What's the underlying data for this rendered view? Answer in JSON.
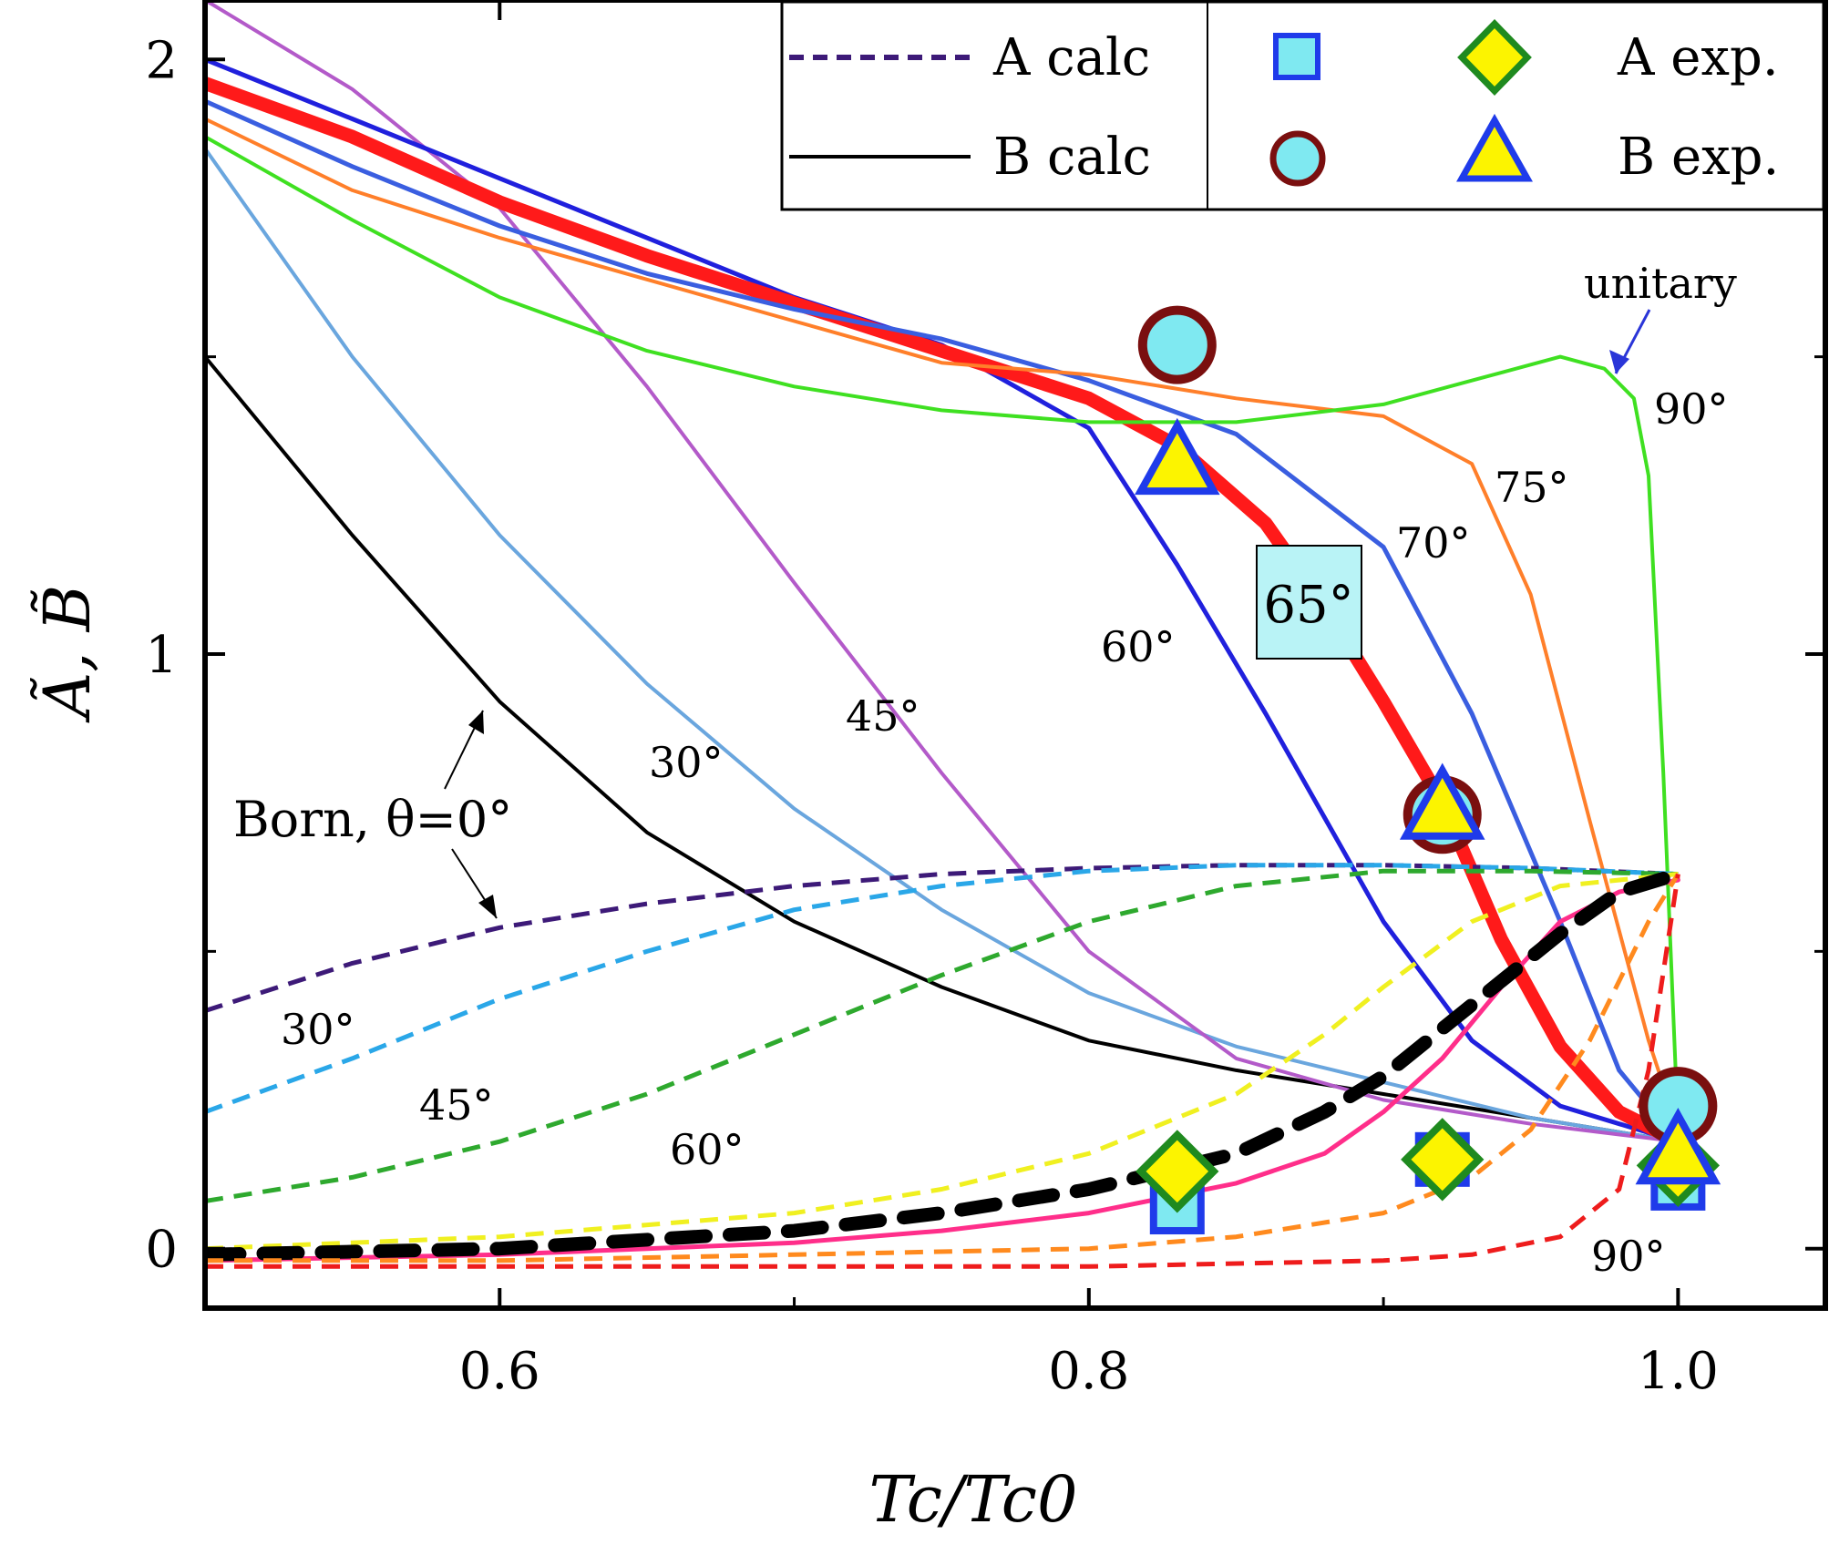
{
  "chart_data": {
    "type": "line",
    "xlabel": "Tc/Tc0",
    "ylabel": "Ã, B̃",
    "xlim": [
      0.5,
      1.05
    ],
    "ylim": [
      -0.1,
      2.1
    ],
    "x_ticks": [
      {
        "value": 0.6,
        "label": "0.6"
      },
      {
        "value": 0.8,
        "label": "0.8"
      },
      {
        "value": 1.0,
        "label": "1.0"
      }
    ],
    "x_minor_ticks": [
      0.5,
      0.7,
      0.9
    ],
    "y_ticks": [
      {
        "value": 0,
        "label": "0"
      },
      {
        "value": 1,
        "label": "1"
      },
      {
        "value": 2,
        "label": "2"
      }
    ],
    "y_minor_ticks": [
      0.5,
      1.5
    ],
    "legend": {
      "placement": "top-right",
      "a_calc": "A calc",
      "b_calc": "B calc",
      "a_exp": "A exp.",
      "b_exp": "B exp."
    },
    "series": [
      {
        "name": "B calc 0° (Born)",
        "kind": "B",
        "color": "#000000",
        "dash": "solid",
        "width": 4,
        "x": [
          0.5,
          0.55,
          0.6,
          0.65,
          0.7,
          0.75,
          0.8,
          0.85,
          0.9,
          0.95,
          1.0
        ],
        "y": [
          1.5,
          1.2,
          0.92,
          0.7,
          0.55,
          0.44,
          0.35,
          0.3,
          0.26,
          0.22,
          0.18
        ]
      },
      {
        "name": "B calc 30°",
        "kind": "B",
        "color": "#6aa6de",
        "dash": "solid",
        "width": 4,
        "x": [
          0.5,
          0.55,
          0.6,
          0.65,
          0.7,
          0.75,
          0.8,
          0.85,
          0.9,
          0.95,
          1.0
        ],
        "y": [
          1.85,
          1.5,
          1.2,
          0.95,
          0.74,
          0.57,
          0.43,
          0.34,
          0.28,
          0.22,
          0.18
        ]
      },
      {
        "name": "B calc 45°",
        "kind": "B",
        "color": "#b35ac9",
        "dash": "solid",
        "width": 4,
        "x": [
          0.5,
          0.55,
          0.6,
          0.65,
          0.7,
          0.75,
          0.8,
          0.85,
          0.9,
          0.95,
          1.0
        ],
        "y": [
          2.1,
          1.95,
          1.75,
          1.45,
          1.12,
          0.8,
          0.5,
          0.32,
          0.25,
          0.21,
          0.18
        ]
      },
      {
        "name": "B calc 60°",
        "kind": "B",
        "color": "#2020dd",
        "dash": "solid",
        "width": 5,
        "x": [
          0.5,
          0.55,
          0.6,
          0.65,
          0.7,
          0.75,
          0.8,
          0.83,
          0.86,
          0.9,
          0.93,
          0.96,
          1.0
        ],
        "y": [
          2.0,
          1.9,
          1.8,
          1.7,
          1.6,
          1.52,
          1.38,
          1.15,
          0.9,
          0.55,
          0.35,
          0.24,
          0.18
        ]
      },
      {
        "name": "B calc 65°",
        "kind": "B",
        "color": "#ff1a1a",
        "dash": "solid",
        "width": 15,
        "x": [
          0.5,
          0.55,
          0.6,
          0.65,
          0.7,
          0.75,
          0.8,
          0.83,
          0.86,
          0.88,
          0.9,
          0.92,
          0.94,
          0.96,
          0.98,
          1.0
        ],
        "y": [
          1.96,
          1.87,
          1.76,
          1.67,
          1.59,
          1.51,
          1.43,
          1.35,
          1.22,
          1.08,
          0.92,
          0.75,
          0.52,
          0.34,
          0.23,
          0.18
        ]
      },
      {
        "name": "B calc 70°",
        "kind": "B",
        "color": "#3a5ee0",
        "dash": "solid",
        "width": 5,
        "x": [
          0.5,
          0.55,
          0.6,
          0.65,
          0.7,
          0.75,
          0.8,
          0.85,
          0.9,
          0.93,
          0.96,
          0.98,
          1.0
        ],
        "y": [
          1.93,
          1.82,
          1.72,
          1.64,
          1.58,
          1.53,
          1.46,
          1.37,
          1.18,
          0.9,
          0.55,
          0.3,
          0.18
        ]
      },
      {
        "name": "B calc 75°",
        "kind": "B",
        "color": "#ff7f2a",
        "dash": "solid",
        "width": 4,
        "x": [
          0.5,
          0.55,
          0.6,
          0.65,
          0.7,
          0.75,
          0.8,
          0.85,
          0.9,
          0.93,
          0.95,
          0.97,
          0.99,
          1.0
        ],
        "y": [
          1.9,
          1.78,
          1.7,
          1.63,
          1.56,
          1.49,
          1.47,
          1.43,
          1.4,
          1.32,
          1.1,
          0.72,
          0.35,
          0.2
        ]
      },
      {
        "name": "B calc 90° (unitary)",
        "kind": "B",
        "color": "#3fe021",
        "dash": "solid",
        "width": 4,
        "x": [
          0.5,
          0.55,
          0.6,
          0.65,
          0.7,
          0.75,
          0.8,
          0.85,
          0.9,
          0.93,
          0.96,
          0.975,
          0.985,
          0.99,
          0.995,
          1.0
        ],
        "y": [
          1.87,
          1.73,
          1.6,
          1.51,
          1.45,
          1.41,
          1.39,
          1.39,
          1.42,
          1.46,
          1.5,
          1.48,
          1.43,
          1.3,
          0.8,
          0.2
        ]
      },
      {
        "name": "B calc 90° (pink)",
        "kind": "B",
        "color": "#ff2e8a",
        "dash": "solid",
        "width": 5,
        "x": [
          0.5,
          0.6,
          0.7,
          0.75,
          0.8,
          0.85,
          0.88,
          0.9,
          0.92,
          0.94,
          0.96,
          0.98,
          1.0
        ],
        "y": [
          -0.02,
          -0.01,
          0.01,
          0.03,
          0.06,
          0.11,
          0.16,
          0.23,
          0.32,
          0.44,
          0.55,
          0.6,
          0.62
        ]
      },
      {
        "name": "A calc 0° (Born)",
        "kind": "A",
        "color": "#3d1a78",
        "dash": "dashed",
        "width": 5,
        "x": [
          0.5,
          0.55,
          0.6,
          0.65,
          0.7,
          0.75,
          0.8,
          0.85,
          0.9,
          0.95,
          1.0
        ],
        "y": [
          0.4,
          0.48,
          0.54,
          0.58,
          0.61,
          0.63,
          0.64,
          0.645,
          0.645,
          0.64,
          0.63
        ]
      },
      {
        "name": "A calc 30°",
        "kind": "A",
        "color": "#2aa7e8",
        "dash": "dashed",
        "width": 5,
        "x": [
          0.5,
          0.55,
          0.6,
          0.65,
          0.7,
          0.75,
          0.8,
          0.85,
          0.9,
          0.95,
          1.0
        ],
        "y": [
          0.23,
          0.32,
          0.42,
          0.5,
          0.57,
          0.61,
          0.635,
          0.645,
          0.645,
          0.64,
          0.63
        ]
      },
      {
        "name": "A calc 45°",
        "kind": "A",
        "color": "#2ea92e",
        "dash": "dashed",
        "width": 5,
        "x": [
          0.5,
          0.55,
          0.6,
          0.65,
          0.7,
          0.75,
          0.8,
          0.85,
          0.9,
          0.95,
          1.0
        ],
        "y": [
          0.08,
          0.12,
          0.18,
          0.26,
          0.36,
          0.46,
          0.55,
          0.61,
          0.635,
          0.635,
          0.63
        ]
      },
      {
        "name": "A calc 60°",
        "kind": "A",
        "color": "#f0f020",
        "dash": "dashed",
        "width": 5,
        "x": [
          0.5,
          0.6,
          0.7,
          0.75,
          0.8,
          0.85,
          0.88,
          0.9,
          0.93,
          0.96,
          1.0
        ],
        "y": [
          0.0,
          0.02,
          0.06,
          0.1,
          0.16,
          0.26,
          0.36,
          0.44,
          0.55,
          0.61,
          0.63
        ]
      },
      {
        "name": "A calc 65°",
        "kind": "A",
        "color": "#000000",
        "dash": "dashed",
        "width": 15,
        "x": [
          0.5,
          0.6,
          0.7,
          0.75,
          0.8,
          0.85,
          0.88,
          0.9,
          0.92,
          0.94,
          0.96,
          0.98,
          1.0
        ],
        "y": [
          -0.01,
          0.0,
          0.03,
          0.06,
          0.1,
          0.16,
          0.23,
          0.29,
          0.37,
          0.45,
          0.53,
          0.6,
          0.63
        ]
      },
      {
        "name": "A calc 75°",
        "kind": "A",
        "color": "#ff8a1e",
        "dash": "dashed",
        "width": 5,
        "x": [
          0.5,
          0.6,
          0.7,
          0.8,
          0.85,
          0.9,
          0.93,
          0.95,
          0.97,
          0.99,
          1.0
        ],
        "y": [
          -0.02,
          -0.02,
          -0.01,
          0.0,
          0.02,
          0.06,
          0.12,
          0.2,
          0.35,
          0.55,
          0.63
        ]
      },
      {
        "name": "A calc 90°",
        "kind": "A",
        "color": "#ee1c1c",
        "dash": "dashed",
        "width": 5,
        "x": [
          0.5,
          0.7,
          0.8,
          0.9,
          0.93,
          0.96,
          0.98,
          0.99,
          1.0
        ],
        "y": [
          -0.03,
          -0.03,
          -0.03,
          -0.02,
          -0.01,
          0.02,
          0.1,
          0.3,
          0.63
        ]
      }
    ],
    "markers": [
      {
        "name": "A exp. square",
        "shape": "square",
        "x": 0.83,
        "y": 0.07,
        "fill": "#7fe9f1",
        "stroke": "#1f3bea"
      },
      {
        "name": "A exp. square",
        "shape": "square",
        "x": 0.92,
        "y": 0.15,
        "fill": "#7fe9f1",
        "stroke": "#1f3bea"
      },
      {
        "name": "A exp. square",
        "shape": "square",
        "x": 1.0,
        "y": 0.11,
        "fill": "#7fe9f1",
        "stroke": "#1f3bea"
      },
      {
        "name": "A exp. diamond",
        "shape": "diamond",
        "x": 0.83,
        "y": 0.13,
        "fill": "#fcf400",
        "stroke": "#1f8a1f"
      },
      {
        "name": "A exp. diamond",
        "shape": "diamond",
        "x": 0.92,
        "y": 0.15,
        "fill": "#fcf400",
        "stroke": "#1f8a1f"
      },
      {
        "name": "A exp. diamond",
        "shape": "diamond",
        "x": 1.0,
        "y": 0.14,
        "fill": "#fcf400",
        "stroke": "#1f8a1f"
      },
      {
        "name": "B exp. circle",
        "shape": "circle",
        "x": 0.83,
        "y": 1.52,
        "fill": "#7fe9f1",
        "stroke": "#7a0f0f"
      },
      {
        "name": "B exp. circle",
        "shape": "circle",
        "x": 0.92,
        "y": 0.73,
        "fill": "#7fe9f1",
        "stroke": "#7a0f0f"
      },
      {
        "name": "B exp. circle",
        "shape": "circle",
        "x": 1.0,
        "y": 0.24,
        "fill": "#7fe9f1",
        "stroke": "#7a0f0f"
      },
      {
        "name": "B exp. triangle",
        "shape": "triangle",
        "x": 0.83,
        "y": 1.32,
        "fill": "#fcf400",
        "stroke": "#1f3bea"
      },
      {
        "name": "B exp. triangle",
        "shape": "triangle",
        "x": 0.92,
        "y": 0.74,
        "fill": "#fcf400",
        "stroke": "#1f3bea"
      },
      {
        "name": "B exp. triangle",
        "shape": "triangle",
        "x": 1.0,
        "y": 0.16,
        "fill": "#fcf400",
        "stroke": "#1f3bea"
      }
    ],
    "annotations": {
      "born": "Born, θ=0°",
      "unitary": "unitary",
      "b_30": "30°",
      "b_45": "45°",
      "b_60": "60°",
      "b_65": "65°",
      "b_70": "70°",
      "b_75": "75°",
      "b_90": "90°",
      "a_30": "30°",
      "a_45": "45°",
      "a_60": "60°",
      "a_90": "90°"
    }
  }
}
